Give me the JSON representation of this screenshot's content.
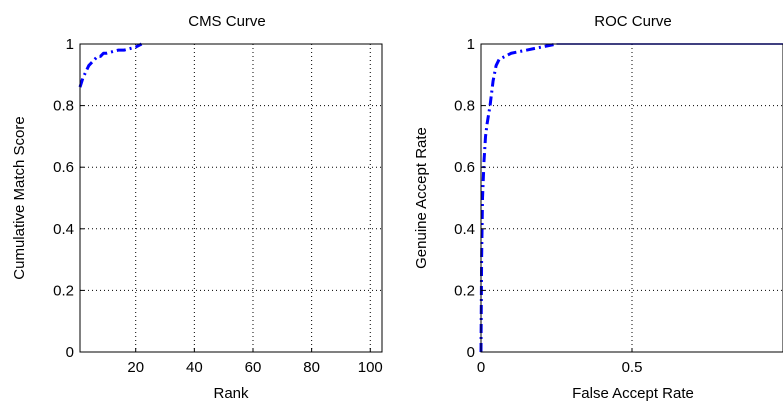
{
  "chart_data": [
    {
      "type": "line",
      "title": "CMS Curve",
      "xlabel": "Rank",
      "ylabel": "Cumulative Match Score",
      "xlim": [
        1,
        104
      ],
      "ylim": [
        0,
        1
      ],
      "xticks": [
        20,
        40,
        60,
        80,
        100
      ],
      "yticks": [
        0,
        0.2,
        0.4,
        0.6,
        0.8,
        1
      ],
      "xtick_labels": [
        "20",
        "40",
        "60",
        "80",
        "100"
      ],
      "ytick_labels": [
        "0",
        "0.2",
        "0.4",
        "0.6",
        "0.8",
        "1"
      ],
      "grid": true,
      "series": [
        {
          "color": "#0000ff",
          "linestyle": "dashdot",
          "x": [
            1,
            2,
            3,
            4,
            5,
            6,
            7,
            8,
            9,
            10,
            12,
            14,
            16,
            18,
            20,
            22
          ],
          "y": [
            0.86,
            0.89,
            0.91,
            0.93,
            0.94,
            0.95,
            0.96,
            0.96,
            0.97,
            0.97,
            0.975,
            0.98,
            0.98,
            0.985,
            0.99,
            1.0
          ]
        }
      ]
    },
    {
      "type": "line",
      "title": "ROC Curve",
      "xlabel": "False Accept Rate",
      "ylabel": "Genuine Accept Rate",
      "xlim": [
        0,
        1
      ],
      "ylim": [
        0,
        1
      ],
      "xticks": [
        0,
        0.5
      ],
      "yticks": [
        0,
        0.2,
        0.4,
        0.6,
        0.8,
        1
      ],
      "xtick_labels": [
        "0",
        "0.5"
      ],
      "ytick_labels": [
        "0",
        "0.2",
        "0.4",
        "0.6",
        "0.8",
        "1"
      ],
      "grid": true,
      "series": [
        {
          "color": "#0000ff",
          "linestyle": "dashdot",
          "x": [
            0,
            0.002,
            0.005,
            0.01,
            0.015,
            0.02,
            0.03,
            0.04,
            0.05,
            0.06,
            0.08,
            0.1,
            0.15,
            0.2,
            0.25
          ],
          "y": [
            0,
            0.3,
            0.5,
            0.62,
            0.7,
            0.74,
            0.8,
            0.88,
            0.93,
            0.95,
            0.96,
            0.97,
            0.98,
            0.99,
            1.0
          ]
        },
        {
          "color": "#0000ff",
          "linestyle": "solid",
          "x": [
            0.25,
            0.3,
            0.5,
            1.0
          ],
          "y": [
            1.0,
            1.0,
            1.0,
            1.0
          ]
        }
      ]
    }
  ]
}
